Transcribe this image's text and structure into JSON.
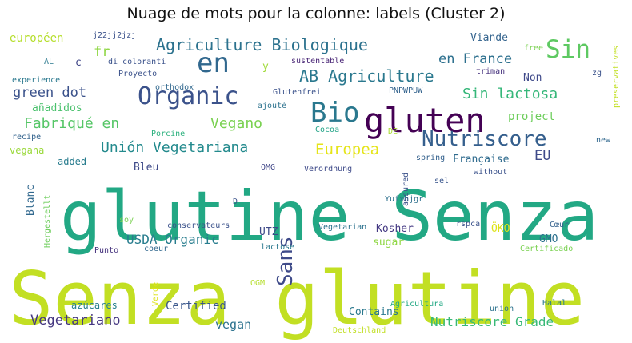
{
  "chart_data": {
    "type": "wordcloud",
    "title": "Nuage de mots pour la colonne: labels (Cluster 2)",
    "words": [
      {
        "text": "Senza glutine",
        "weight": 100,
        "color": "#c2df23",
        "rotate": false
      },
      {
        "text": "glutine Senza",
        "weight": 88,
        "color": "#22a884",
        "rotate": false
      },
      {
        "text": "gluten",
        "weight": 44,
        "color": "#440154",
        "rotate": false
      },
      {
        "text": "Bio",
        "weight": 36,
        "color": "#2a788e",
        "rotate": false
      },
      {
        "text": "en",
        "weight": 34,
        "color": "#31688e",
        "rotate": false
      },
      {
        "text": "Sin",
        "weight": 32,
        "color": "#5ec962",
        "rotate": false
      },
      {
        "text": "Organic",
        "weight": 32,
        "color": "#3b528b",
        "rotate": false
      },
      {
        "text": "Nutriscore",
        "weight": 27,
        "color": "#355f8d",
        "rotate": false
      },
      {
        "text": "Sans",
        "weight": 26,
        "color": "#3e4a89",
        "rotate": true
      },
      {
        "text": "Agriculture Biologique",
        "weight": 22,
        "color": "#2c728e",
        "rotate": false
      },
      {
        "text": "AB Agriculture",
        "weight": 22,
        "color": "#2a788e",
        "rotate": false
      },
      {
        "text": "Sin lactosa",
        "weight": 19,
        "color": "#35b779",
        "rotate": false
      },
      {
        "text": "Europea",
        "weight": 19,
        "color": "#e5e419",
        "rotate": false
      },
      {
        "text": "Unión Vegetariana",
        "weight": 19,
        "color": "#238a8d",
        "rotate": false
      },
      {
        "text": "Vegano",
        "weight": 19,
        "color": "#7ad151",
        "rotate": false
      },
      {
        "text": "Fabriqué en",
        "weight": 19,
        "color": "#56c667",
        "rotate": false
      },
      {
        "text": "en France",
        "weight": 18,
        "color": "#2d708e",
        "rotate": false
      },
      {
        "text": "green dot",
        "weight": 18,
        "color": "#3b528b",
        "rotate": false
      },
      {
        "text": "EU",
        "weight": 17,
        "color": "#3e4a89",
        "rotate": false
      },
      {
        "text": "Vegetariano",
        "weight": 17,
        "color": "#453781",
        "rotate": false
      },
      {
        "text": "Nutriscore Grade",
        "weight": 17,
        "color": "#38b977",
        "rotate": false
      },
      {
        "text": "USDA Organic",
        "weight": 17,
        "color": "#287d8e",
        "rotate": false
      },
      {
        "text": "vegan",
        "weight": 16,
        "color": "#2c728e",
        "rotate": false
      },
      {
        "text": "Certified",
        "weight": 15,
        "color": "#39568c",
        "rotate": false
      },
      {
        "text": "project",
        "weight": 15,
        "color": "#6ccd5a",
        "rotate": false
      },
      {
        "text": "Non",
        "weight": 14,
        "color": "#3e4989",
        "rotate": false
      },
      {
        "text": "Viande",
        "weight": 14,
        "color": "#33638d",
        "rotate": false
      },
      {
        "text": "Française",
        "weight": 14,
        "color": "#2f6b8e",
        "rotate": false
      },
      {
        "text": "Contains",
        "weight": 14,
        "color": "#2a788e",
        "rotate": false
      },
      {
        "text": "sugar",
        "weight": 14,
        "color": "#8fd744",
        "rotate": false
      },
      {
        "text": "Kosher",
        "weight": 14,
        "color": "#443983",
        "rotate": false
      },
      {
        "text": "fr",
        "weight": 16,
        "color": "#8fd744",
        "rotate": false
      },
      {
        "text": "européen",
        "weight": 14,
        "color": "#b5de2b",
        "rotate": false
      },
      {
        "text": "Bleu",
        "weight": 13,
        "color": "#3e4a89",
        "rotate": false
      },
      {
        "text": "GMO",
        "weight": 13,
        "color": "#2d718e",
        "rotate": false
      },
      {
        "text": "ÖKO",
        "weight": 13,
        "color": "#dde318",
        "rotate": false
      },
      {
        "text": "Blanc",
        "weight": 13,
        "color": "#31688e",
        "rotate": true
      },
      {
        "text": "UTZ",
        "weight": 13,
        "color": "#3e4a89",
        "rotate": false
      },
      {
        "text": "añadidos",
        "weight": 13,
        "color": "#4ac16d",
        "rotate": false
      },
      {
        "text": "vegana",
        "weight": 12,
        "color": "#9bd93c",
        "rotate": false
      },
      {
        "text": "added",
        "weight": 12,
        "color": "#287c8e",
        "rotate": false
      },
      {
        "text": "azúcares",
        "weight": 12,
        "color": "#27808e",
        "rotate": false
      },
      {
        "text": "c",
        "weight": 13,
        "color": "#404688",
        "rotate": false
      },
      {
        "text": "y",
        "weight": 13,
        "color": "#a0da39",
        "rotate": false
      },
      {
        "text": "j22jj2jzj",
        "weight": 11,
        "color": "#3b528b",
        "rotate": false
      },
      {
        "text": "Glutenfrei",
        "weight": 10,
        "color": "#3b528b",
        "rotate": false
      },
      {
        "text": "PNPWPUW",
        "weight": 10,
        "color": "#33638d",
        "rotate": false
      },
      {
        "text": "sustentable",
        "weight": 10,
        "color": "#482475",
        "rotate": false
      },
      {
        "text": "Proyecto",
        "weight": 10,
        "color": "#3b528b",
        "rotate": false
      },
      {
        "text": "orthodox",
        "weight": 10,
        "color": "#31688e",
        "rotate": false
      },
      {
        "text": "ajouté",
        "weight": 10,
        "color": "#2c728e",
        "rotate": false
      },
      {
        "text": "Cocoa",
        "weight": 10,
        "color": "#20a386",
        "rotate": false
      },
      {
        "text": "DE",
        "weight": 10,
        "color": "#aadc32",
        "rotate": false
      },
      {
        "text": "Porcine",
        "weight": 10,
        "color": "#2cb17e",
        "rotate": false
      },
      {
        "text": "recipe",
        "weight": 10,
        "color": "#33638d",
        "rotate": false
      },
      {
        "text": "Verordnung",
        "weight": 10,
        "color": "#3e4a89",
        "rotate": false
      },
      {
        "text": "OMG",
        "weight": 10,
        "color": "#404688",
        "rotate": false
      },
      {
        "text": "without",
        "weight": 10,
        "color": "#3b528b",
        "rotate": false
      },
      {
        "text": "spring",
        "weight": 10,
        "color": "#34618d",
        "rotate": false
      },
      {
        "text": "sel",
        "weight": 10,
        "color": "#39568c",
        "rotate": false
      },
      {
        "text": "Yufxhjgr",
        "weight": 10,
        "color": "#2d708e",
        "rotate": false
      },
      {
        "text": "rspca",
        "weight": 10,
        "color": "#3b528b",
        "rotate": false
      },
      {
        "text": "conservateurs",
        "weight": 10,
        "color": "#3b528b",
        "rotate": false
      },
      {
        "text": "Vegetarian",
        "weight": 10,
        "color": "#2c728e",
        "rotate": false
      },
      {
        "text": "soy",
        "weight": 10,
        "color": "#7ad151",
        "rotate": false
      },
      {
        "text": "D",
        "weight": 10,
        "color": "#3b528b",
        "rotate": false
      },
      {
        "text": "Punto",
        "weight": 10,
        "color": "#46337e",
        "rotate": false
      },
      {
        "text": "coeur",
        "weight": 10,
        "color": "#31688e",
        "rotate": false
      },
      {
        "text": "lactose",
        "weight": 10,
        "color": "#2a788e",
        "rotate": false
      },
      {
        "text": "Cœur",
        "weight": 10,
        "color": "#34618d",
        "rotate": false
      },
      {
        "text": "Certificado",
        "weight": 10,
        "color": "#7ad151",
        "rotate": false
      },
      {
        "text": "OGM",
        "weight": 10,
        "color": "#b5de2b",
        "rotate": false
      },
      {
        "text": "Agricultura",
        "weight": 10,
        "color": "#22a884",
        "rotate": false
      },
      {
        "text": "union",
        "weight": 10,
        "color": "#2c728e",
        "rotate": false
      },
      {
        "text": "Halal",
        "weight": 10,
        "color": "#2a788e",
        "rotate": false
      },
      {
        "text": "Deutschland",
        "weight": 10,
        "color": "#c2df23",
        "rotate": false
      },
      {
        "text": "AL",
        "weight": 10,
        "color": "#2a788e",
        "rotate": false
      },
      {
        "text": "experience",
        "weight": 10,
        "color": "#2a788e",
        "rotate": false
      },
      {
        "text": "di coloranti",
        "weight": 10,
        "color": "#3b528b",
        "rotate": false
      },
      {
        "text": "free",
        "weight": 10,
        "color": "#7ad151",
        "rotate": false
      },
      {
        "text": "triman",
        "weight": 10,
        "color": "#46327e",
        "rotate": false
      },
      {
        "text": "zg",
        "weight": 10,
        "color": "#3b528b",
        "rotate": false
      },
      {
        "text": "new",
        "weight": 10,
        "color": "#31688e",
        "rotate": false
      },
      {
        "text": "preservatives",
        "weight": 10,
        "color": "#c2df23",
        "rotate": true
      },
      {
        "text": "assured",
        "weight": 10,
        "color": "#3b528b",
        "rotate": true
      },
      {
        "text": "Hergestellt",
        "weight": 10,
        "color": "#6ccd5a",
        "rotate": true
      },
      {
        "text": "Verde",
        "weight": 10,
        "color": "#dde318",
        "rotate": true
      }
    ]
  }
}
